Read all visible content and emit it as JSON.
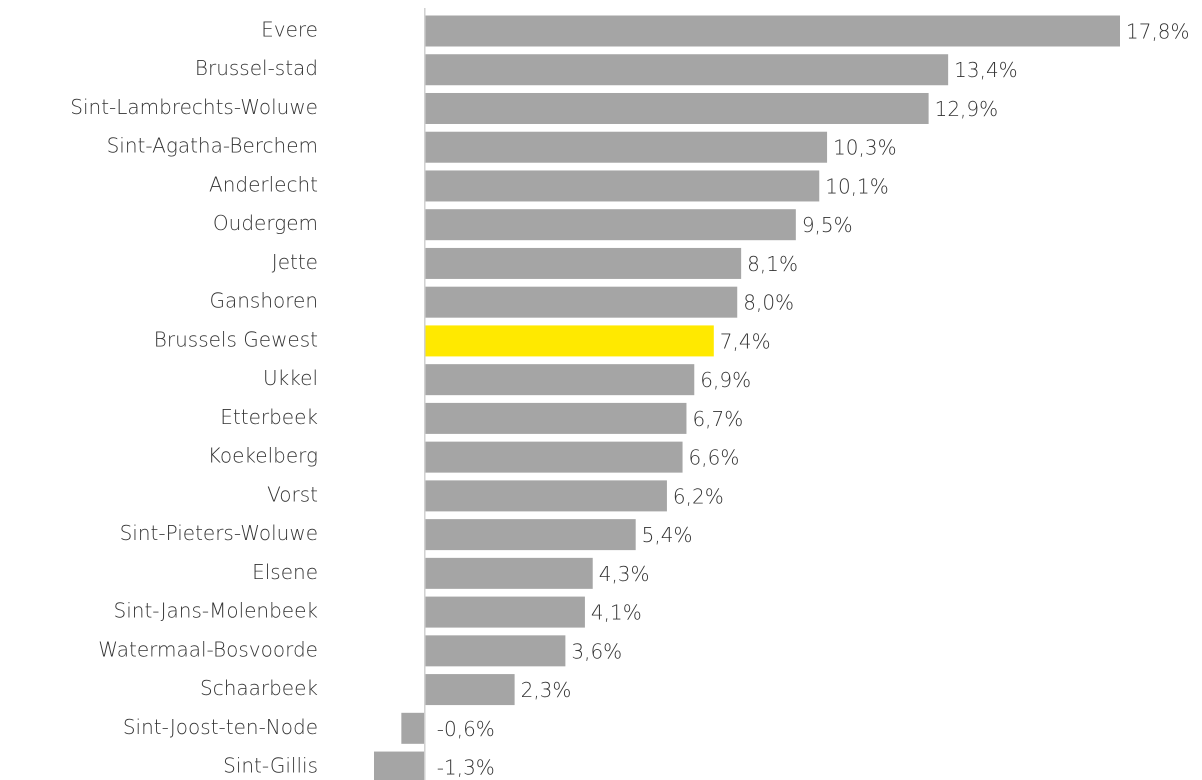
{
  "chart_data": {
    "type": "bar",
    "orientation": "horizontal",
    "categories": [
      "Evere",
      "Brussel-stad",
      "Sint-Lambrechts-Woluwe",
      "Sint-Agatha-Berchem",
      "Anderlecht",
      "Oudergem",
      "Jette",
      "Ganshoren",
      "Brussels Gewest",
      "Ukkel",
      "Etterbeek",
      "Koekelberg",
      "Vorst",
      "Sint-Pieters-Woluwe",
      "Elsene",
      "Sint-Jans-Molenbeek",
      "Watermaal-Bosvoorde",
      "Schaarbeek",
      "Sint-Joost-ten-Node",
      "Sint-Gillis"
    ],
    "values": [
      17.8,
      13.4,
      12.9,
      10.3,
      10.1,
      9.5,
      8.1,
      8.0,
      7.4,
      6.9,
      6.7,
      6.6,
      6.2,
      5.4,
      4.3,
      4.1,
      3.6,
      2.3,
      -0.6,
      -1.3
    ],
    "value_labels": [
      "17,8%",
      "13,4%",
      "12,9%",
      "10,3%",
      "10,1%",
      "9,5%",
      "8,1%",
      "8,0%",
      "7,4%",
      "6,9%",
      "6,7%",
      "6,6%",
      "6,2%",
      "5,4%",
      "4,3%",
      "4,1%",
      "3,6%",
      "2,3%",
      "-0,6%",
      "-1,3%"
    ],
    "colors": [
      "#a5a5a5",
      "#a5a5a5",
      "#a5a5a5",
      "#a5a5a5",
      "#a5a5a5",
      "#a5a5a5",
      "#a5a5a5",
      "#a5a5a5",
      "#ffe900",
      "#a5a5a5",
      "#a5a5a5",
      "#a5a5a5",
      "#a5a5a5",
      "#a5a5a5",
      "#a5a5a5",
      "#a5a5a5",
      "#a5a5a5",
      "#a5a5a5",
      "#a5a5a5",
      "#a5a5a5"
    ]
  }
}
